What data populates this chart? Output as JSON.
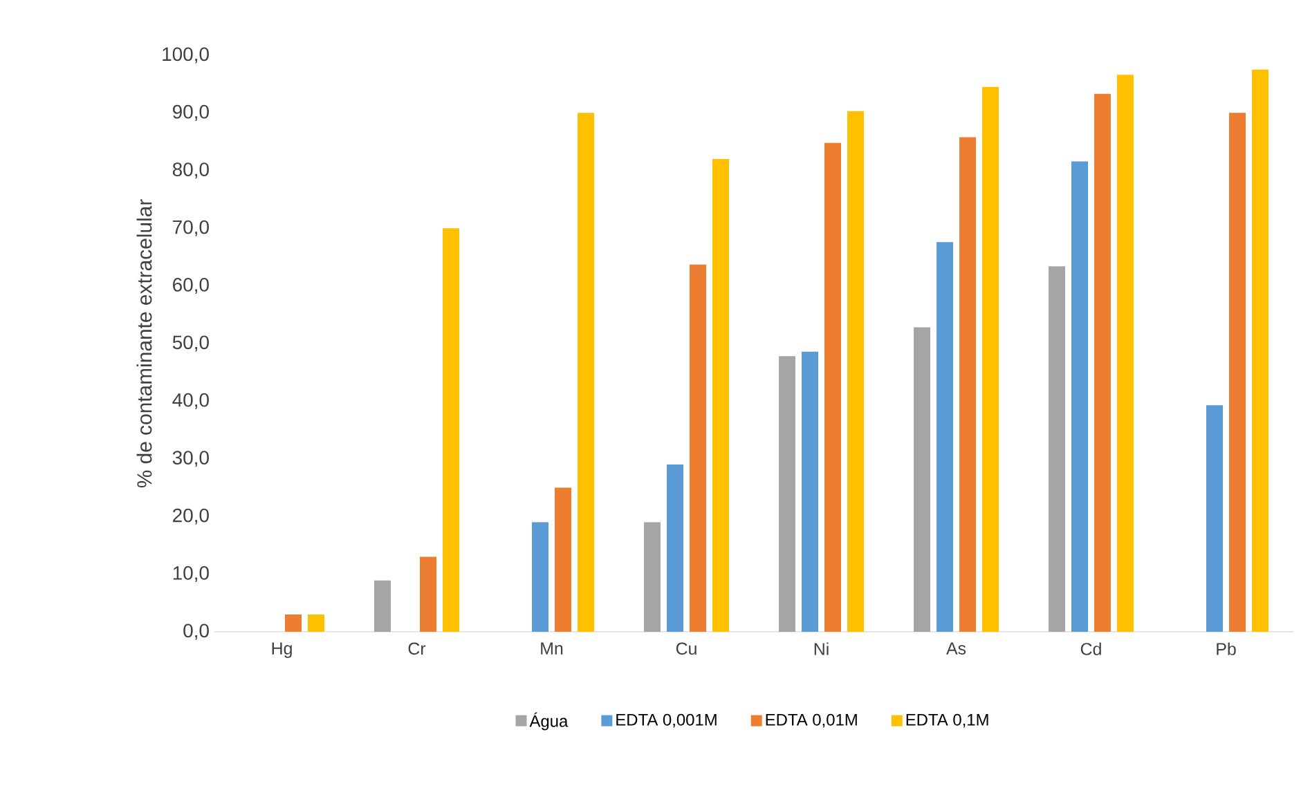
{
  "chart_data": {
    "type": "bar",
    "ylabel": "% de contaminante extracelular",
    "categories": [
      "Hg",
      "Cr",
      "Mn",
      "Cu",
      "Ni",
      "As",
      "Cd",
      "Pb"
    ],
    "series": [
      {
        "name": "Água",
        "color": "#a5a5a5",
        "values": [
          0,
          8.9,
          0,
          19.0,
          47.8,
          52.8,
          63.4,
          0
        ]
      },
      {
        "name": "EDTA 0,001M",
        "color": "#5b9bd5",
        "values": [
          0,
          0,
          19.0,
          29.0,
          48.6,
          67.6,
          81.6,
          39.3
        ]
      },
      {
        "name": "EDTA 0,01M",
        "color": "#ed7d31",
        "values": [
          3.0,
          13.0,
          25.0,
          63.7,
          84.8,
          85.8,
          93.3,
          90.0
        ]
      },
      {
        "name": "EDTA 0,1M",
        "color": "#ffc000",
        "values": [
          3.0,
          70.0,
          90.0,
          82.0,
          90.3,
          94.5,
          96.6,
          97.5
        ]
      }
    ],
    "ylim": [
      0,
      100
    ],
    "yticks": [
      {
        "value": 0,
        "label": "0,0"
      },
      {
        "value": 10,
        "label": "10,0"
      },
      {
        "value": 20,
        "label": "20,0"
      },
      {
        "value": 30,
        "label": "30,0"
      },
      {
        "value": 40,
        "label": "40,0"
      },
      {
        "value": 50,
        "label": "50,0"
      },
      {
        "value": 60,
        "label": "60,0"
      },
      {
        "value": 70,
        "label": "70,0"
      },
      {
        "value": 80,
        "label": "80,0"
      },
      {
        "value": 90,
        "label": "90,0"
      },
      {
        "value": 100,
        "label": "100,0"
      }
    ],
    "legend": "bottom"
  }
}
